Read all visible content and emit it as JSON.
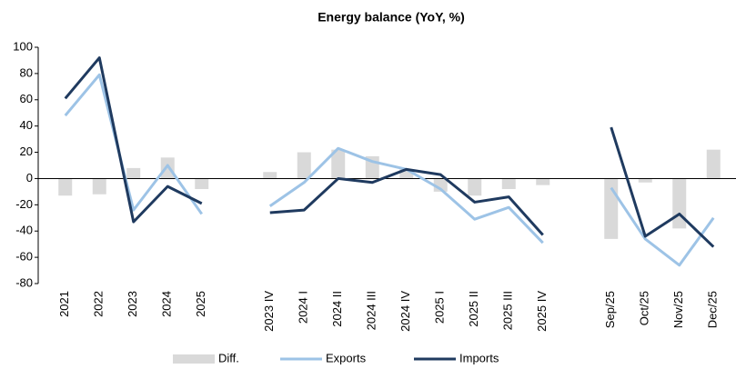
{
  "chart_data": {
    "type": "combo",
    "title": "Energy balance (YoY, %)",
    "categories": [
      "2021",
      "2022",
      "2023",
      "2024",
      "2025",
      null,
      "2023 IV",
      "2024 I",
      "2024 II",
      "2024 III",
      "2024 IV",
      "2025 I",
      "2025 II",
      "2025 III",
      "2025 IV",
      null,
      "Sep/25",
      "Oct/25",
      "Nov/25",
      "Dec/25"
    ],
    "ylim": [
      -80,
      100
    ],
    "yticks": [
      -80,
      -60,
      -40,
      -20,
      0,
      20,
      40,
      60,
      80,
      100
    ],
    "legend": "bottom",
    "series": [
      {
        "name": "Diff.",
        "type": "bar",
        "color": "#d9d9d9",
        "values": [
          -13,
          -12,
          8,
          16,
          -8,
          null,
          5,
          20,
          22,
          17,
          7,
          -10,
          -13,
          -8,
          -5,
          null,
          -46,
          -3,
          -38,
          22
        ]
      },
      {
        "name": "Exports",
        "type": "line",
        "color": "#9dc3e6",
        "values": [
          48,
          79,
          -24,
          10,
          -27,
          null,
          -21,
          -3,
          23,
          13,
          7,
          -8,
          -31,
          -22,
          -49,
          null,
          -7,
          -46,
          -66,
          -30
        ]
      },
      {
        "name": "Imports",
        "type": "line",
        "color": "#1f3a5f",
        "values": [
          61,
          92,
          -33,
          -6,
          -19,
          null,
          -26,
          -24,
          0,
          -3,
          7,
          3,
          -18,
          -14,
          -43,
          null,
          39,
          -44,
          -27,
          -52
        ]
      }
    ]
  }
}
